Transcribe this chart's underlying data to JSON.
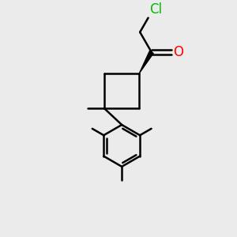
{
  "background_color": "#ebebeb",
  "bond_color": "#000000",
  "cl_color": "#00bb00",
  "o_color": "#ff0000",
  "line_width": 1.8,
  "font_size": 12,
  "fig_size": [
    3.0,
    3.0
  ],
  "dpi": 100
}
